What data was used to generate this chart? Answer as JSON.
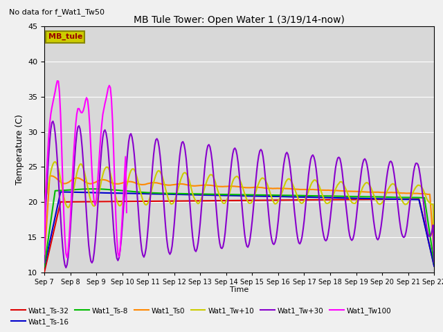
{
  "title": "MB Tule Tower: Open Water 1 (3/19/14-now)",
  "subtitle": "No data for f_Wat1_Tw50",
  "xlabel": "Time",
  "ylabel": "Temperature (C)",
  "ylim": [
    10,
    45
  ],
  "yticks": [
    10,
    15,
    20,
    25,
    30,
    35,
    40,
    45
  ],
  "background_color": "#d8d8d8",
  "legend_box_label": "MB_tule",
  "legend_box_color": "#cccc00",
  "legend_box_text_color": "#990000",
  "lines": {
    "Wat1_Ts-32": {
      "color": "#dd0000",
      "lw": 1.5
    },
    "Wat1_Ts-16": {
      "color": "#0000cc",
      "lw": 1.5
    },
    "Wat1_Ts-8": {
      "color": "#00bb00",
      "lw": 1.5
    },
    "Wat1_Ts0": {
      "color": "#ff8800",
      "lw": 1.5
    },
    "Wat1_Tw+10": {
      "color": "#cccc00",
      "lw": 1.5
    },
    "Wat1_Tw+30": {
      "color": "#8800cc",
      "lw": 1.5
    },
    "Wat1_Tw100": {
      "color": "#ff00ff",
      "lw": 1.5
    }
  },
  "xtick_labels": [
    "Sep 7",
    "Sep 8",
    "Sep 9",
    "Sep 10",
    "Sep 11",
    "Sep 12",
    "Sep 13",
    "Sep 14",
    "Sep 15",
    "Sep 16",
    "Sep 17",
    "Sep 18",
    "Sep 19",
    "Sep 20",
    "Sep 21",
    "Sep 22"
  ],
  "xtick_positions": [
    0,
    1,
    2,
    3,
    4,
    5,
    6,
    7,
    8,
    9,
    10,
    11,
    12,
    13,
    14,
    15
  ]
}
